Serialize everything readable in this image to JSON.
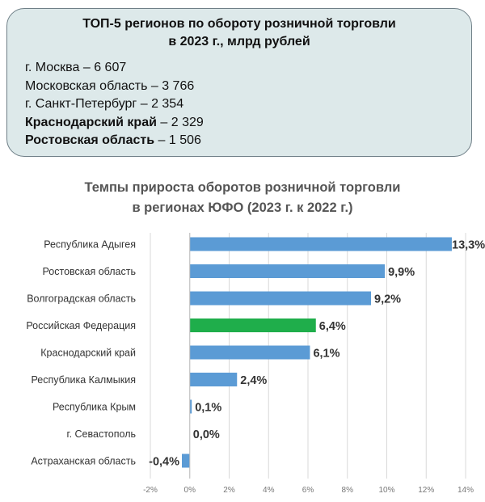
{
  "top5": {
    "title_line1": "ТОП-5 регионов по обороту розничной торговли",
    "title_line2": "в 2023 г., млрд рублей",
    "items": [
      {
        "name": "г. Москва",
        "value": "6 607",
        "bold": false
      },
      {
        "name": "Московская область",
        "value": "3 766",
        "bold": false
      },
      {
        "name": "г. Санкт-Петербург",
        "value": "2 354",
        "bold": false
      },
      {
        "name": "Краснодарский край",
        "value": "2 329",
        "bold": true
      },
      {
        "name": "Ростовская область",
        "value": "1 506",
        "bold": true
      }
    ]
  },
  "chart_data": {
    "type": "bar",
    "orientation": "horizontal",
    "title_line1": "Темпы прироста оборотов розничной торговли",
    "title_line2": "в регионах ЮФО (2023 г. к 2022 г.)",
    "categories": [
      "Республика Адыгея",
      "Ростовская область",
      "Волгоградская область",
      "Российская Федерация",
      "Краснодарский край",
      "Республика Калмыкия",
      "Республика Крым",
      "г. Севастополь",
      "Астраханская область"
    ],
    "values": [
      13.3,
      9.9,
      9.2,
      6.4,
      6.1,
      2.4,
      0.1,
      0.0,
      -0.4
    ],
    "labels": [
      "13,3%",
      "9,9%",
      "9,2%",
      "6,4%",
      "6,1%",
      "2,4%",
      "0,1%",
      "0,0%",
      "-0,4%"
    ],
    "highlight_index": 3,
    "xlim": [
      -2,
      14
    ],
    "xticks": [
      -2,
      0,
      2,
      4,
      6,
      8,
      10,
      12,
      14
    ],
    "xtick_labels": [
      "-2%",
      "0%",
      "2%",
      "4%",
      "6%",
      "8%",
      "10%",
      "12%",
      "14%"
    ],
    "grid": true,
    "colors": {
      "bar": "#5b9bd5",
      "highlight": "#1fae4b",
      "grid": "#d9d9d9"
    }
  }
}
